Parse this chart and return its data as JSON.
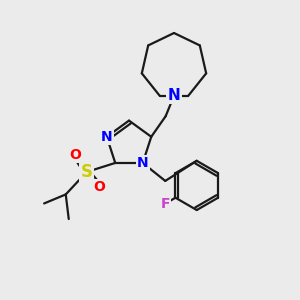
{
  "bg_color": "#ebebeb",
  "bond_color": "#1a1a1a",
  "N_color": "#0000ff",
  "S_color": "#cccc00",
  "O_color": "#ff0000",
  "F_color": "#cc44cc",
  "figsize": [
    3.0,
    3.0
  ],
  "dpi": 100,
  "bond_lw": 1.6,
  "xlim": [
    0,
    10
  ],
  "ylim": [
    0,
    10
  ]
}
